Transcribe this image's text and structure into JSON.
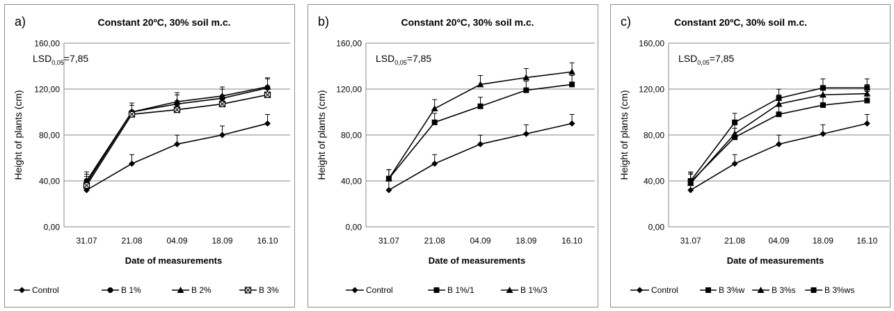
{
  "chart_data": [
    {
      "type": "line",
      "panel_label": "a)",
      "title": "Constant 20ºC,  30% soil  m.c.",
      "annotation": {
        "lsd_prefix": "LSD",
        "lsd_sub": "0,05",
        "lsd_value": "=7,85"
      },
      "xlabel": "Date of measurements",
      "ylabel": "Height of plants (cm)",
      "categories": [
        "31.07",
        "21.08",
        "04.09",
        "18.09",
        "16.10"
      ],
      "ylim": [
        0,
        160
      ],
      "yticks": [
        "0,00",
        "40,00",
        "80,00",
        "120,00",
        "160,00"
      ],
      "grid": true,
      "legend_position": "bottom",
      "error_bar": 7.85,
      "series": [
        {
          "name": "Control",
          "marker": "diamond",
          "values": [
            32,
            55,
            72,
            80,
            90
          ]
        },
        {
          "name": "B 1%",
          "marker": "circle",
          "values": [
            40,
            100,
            107,
            112,
            121
          ]
        },
        {
          "name": "B 2%",
          "marker": "triangle",
          "values": [
            38,
            100,
            109,
            114,
            122
          ]
        },
        {
          "name": "B 3%",
          "marker": "square-x",
          "values": [
            36,
            98,
            102,
            107,
            115
          ]
        }
      ]
    },
    {
      "type": "line",
      "panel_label": "b)",
      "title": "Constant 20ºC,  30% soil  m.c.",
      "annotation": {
        "lsd_prefix": "LSD",
        "lsd_sub": "0,05",
        "lsd_value": "=7,85"
      },
      "xlabel": "Date of measurements",
      "ylabel": "Height of plants (cm)",
      "categories": [
        "31.07",
        "21.08",
        "04.09",
        "18.09",
        "16.10"
      ],
      "ylim": [
        0,
        160
      ],
      "yticks": [
        "0,00",
        "40,00",
        "80,00",
        "120,00",
        "160,00"
      ],
      "grid": true,
      "legend_position": "bottom",
      "error_bar": 7.85,
      "series": [
        {
          "name": "Control",
          "marker": "diamond",
          "values": [
            32,
            55,
            72,
            81,
            90
          ]
        },
        {
          "name": "B 1%/1",
          "marker": "square",
          "values": [
            42,
            91,
            105,
            119,
            124
          ]
        },
        {
          "name": "B 1%/3",
          "marker": "triangle",
          "values": [
            42,
            103,
            124,
            130,
            135
          ]
        }
      ]
    },
    {
      "type": "line",
      "panel_label": "c)",
      "title": "Constant 20ºC,  30% soil  m.c.",
      "annotation": {
        "lsd_prefix": "LSD",
        "lsd_sub": "0,05",
        "lsd_value": "=7,85"
      },
      "xlabel": "Date of measurements",
      "ylabel": "Height of plants (cm)",
      "categories": [
        "31.07",
        "21.08",
        "04.09",
        "18.09",
        "16.10"
      ],
      "ylim": [
        0,
        160
      ],
      "yticks": [
        "0,00",
        "40,00",
        "80,00",
        "120,00",
        "160,00"
      ],
      "grid": true,
      "legend_position": "bottom",
      "error_bar": 7.85,
      "series": [
        {
          "name": "Control",
          "marker": "diamond",
          "values": [
            32,
            55,
            72,
            81,
            90
          ]
        },
        {
          "name": "B 3%w",
          "marker": "square",
          "values": [
            40,
            91,
            112,
            121,
            121
          ]
        },
        {
          "name": "B 3%s",
          "marker": "triangle",
          "values": [
            38,
            81,
            107,
            115,
            116
          ]
        },
        {
          "name": "B 3%ws",
          "marker": "square",
          "values": [
            39,
            78,
            98,
            106,
            110
          ]
        }
      ]
    }
  ]
}
